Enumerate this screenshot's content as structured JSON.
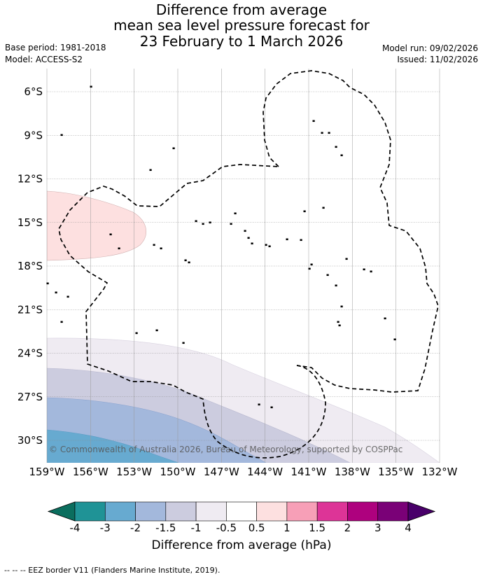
{
  "title": {
    "line1": "Difference from average",
    "line2": "mean sea level pressure forecast for",
    "line3": "23 February to 1 March 2026"
  },
  "meta": {
    "base_period": "Base period: 1981-2018",
    "model": "Model: ACCESS-S2",
    "model_run": "Model run: 09/02/2026",
    "issued": "Issued: 11/02/2026"
  },
  "map": {
    "lat_labels": [
      "6°S",
      "9°S",
      "12°S",
      "15°S",
      "18°S",
      "21°S",
      "24°S",
      "27°S",
      "30°S"
    ],
    "lat_values": [
      -6,
      -9,
      -12,
      -15,
      -18,
      -21,
      -24,
      -27,
      -30
    ],
    "lon_labels": [
      "159°W",
      "156°W",
      "153°W",
      "150°W",
      "147°W",
      "144°W",
      "141°W",
      "138°W",
      "135°W",
      "132°W"
    ],
    "lon_values": [
      -159,
      -156,
      -153,
      -150,
      -147,
      -144,
      -141,
      -138,
      -135,
      -132
    ],
    "copyright": "© Commonwealth of Australia 2026, Bureau of Meteorology, supported by COSPPac"
  },
  "colorbar": {
    "title": "Difference from average (hPa)",
    "tick_labels": [
      "-4",
      "-3",
      "-2",
      "-1.5",
      "-1",
      "-0.5",
      "0.5",
      "1",
      "1.5",
      "2",
      "3",
      "4"
    ],
    "colors": {
      "under": "#0b6e5e",
      "bins": [
        "#1f9396",
        "#67aad0",
        "#a3b8dc",
        "#ccccdf",
        "#efebf2",
        "#ffffff",
        "#fde0e0",
        "#f79fb7",
        "#dd3497",
        "#ae017e",
        "#7a0177"
      ],
      "over": "#49006a"
    }
  },
  "legend": {
    "eez": "--  --  -- EEZ border V11 (Flanders Marine Institute, 2019)."
  }
}
